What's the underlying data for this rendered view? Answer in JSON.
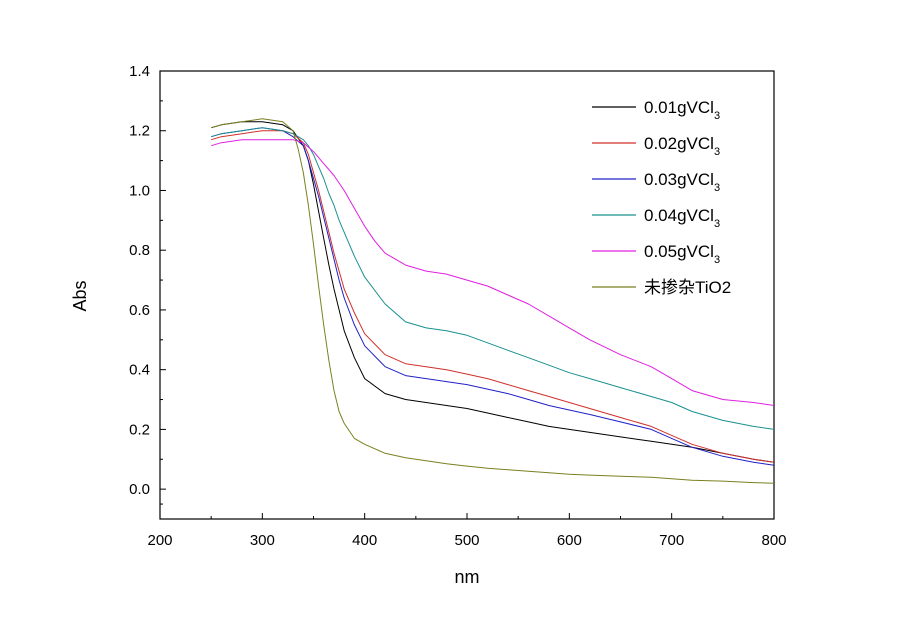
{
  "chart_data": {
    "type": "line",
    "xlabel": "nm",
    "ylabel": "Abs",
    "xlim": [
      200,
      800
    ],
    "ylim": [
      -0.1,
      1.4
    ],
    "xticks": [
      200,
      300,
      400,
      500,
      600,
      700,
      800
    ],
    "xtick_labels": [
      "200",
      "300",
      "400",
      "500",
      "600",
      "700",
      "800"
    ],
    "yticks": [
      0.0,
      0.2,
      0.4,
      0.6,
      0.8,
      1.0,
      1.2,
      1.4
    ],
    "ytick_labels": [
      "0.0",
      "0.2",
      "0.4",
      "0.6",
      "0.8",
      "1.0",
      "1.2",
      "1.4"
    ],
    "grid": false,
    "legend_position": "top-right",
    "series": [
      {
        "name": "0.01gVCl",
        "name_sub": "3",
        "color": "#000000",
        "x": [
          250,
          260,
          280,
          300,
          320,
          330,
          340,
          345,
          350,
          355,
          360,
          365,
          370,
          375,
          380,
          390,
          400,
          420,
          440,
          460,
          480,
          500,
          520,
          540,
          560,
          580,
          600,
          620,
          650,
          680,
          700,
          720,
          750,
          780,
          800
        ],
        "y": [
          1.21,
          1.22,
          1.23,
          1.23,
          1.22,
          1.2,
          1.15,
          1.1,
          1.02,
          0.93,
          0.84,
          0.75,
          0.67,
          0.6,
          0.53,
          0.44,
          0.37,
          0.32,
          0.3,
          0.29,
          0.28,
          0.27,
          0.255,
          0.24,
          0.225,
          0.21,
          0.2,
          0.19,
          0.175,
          0.16,
          0.15,
          0.14,
          0.12,
          0.1,
          0.09
        ]
      },
      {
        "name": "0.02gVCl",
        "name_sub": "3",
        "color": "#d0302a",
        "x": [
          250,
          260,
          280,
          300,
          320,
          330,
          340,
          345,
          350,
          355,
          360,
          365,
          370,
          375,
          380,
          390,
          400,
          420,
          440,
          460,
          480,
          500,
          520,
          540,
          560,
          580,
          600,
          620,
          650,
          680,
          700,
          720,
          750,
          780,
          800
        ],
        "y": [
          1.17,
          1.18,
          1.19,
          1.2,
          1.2,
          1.19,
          1.16,
          1.12,
          1.06,
          1.0,
          0.93,
          0.86,
          0.79,
          0.73,
          0.67,
          0.59,
          0.52,
          0.45,
          0.42,
          0.41,
          0.4,
          0.385,
          0.37,
          0.35,
          0.33,
          0.31,
          0.29,
          0.27,
          0.24,
          0.21,
          0.18,
          0.15,
          0.12,
          0.1,
          0.09
        ]
      },
      {
        "name": "0.03gVCl",
        "name_sub": "3",
        "color": "#2020c8",
        "x": [
          250,
          260,
          280,
          300,
          320,
          330,
          340,
          345,
          350,
          355,
          360,
          365,
          370,
          375,
          380,
          390,
          400,
          420,
          440,
          460,
          480,
          500,
          520,
          540,
          560,
          580,
          600,
          620,
          650,
          680,
          700,
          720,
          750,
          780,
          800
        ],
        "y": [
          1.18,
          1.19,
          1.2,
          1.21,
          1.2,
          1.18,
          1.15,
          1.1,
          1.04,
          0.98,
          0.91,
          0.84,
          0.77,
          0.7,
          0.64,
          0.55,
          0.48,
          0.41,
          0.38,
          0.37,
          0.36,
          0.35,
          0.335,
          0.32,
          0.3,
          0.28,
          0.265,
          0.25,
          0.225,
          0.2,
          0.17,
          0.14,
          0.11,
          0.09,
          0.08
        ]
      },
      {
        "name": "0.04gVCl",
        "name_sub": "3",
        "color": "#1a9090",
        "x": [
          250,
          260,
          280,
          300,
          320,
          330,
          340,
          345,
          350,
          355,
          360,
          365,
          370,
          375,
          380,
          390,
          400,
          420,
          440,
          460,
          480,
          500,
          520,
          540,
          560,
          580,
          600,
          620,
          650,
          680,
          700,
          720,
          750,
          780,
          800
        ],
        "y": [
          1.18,
          1.19,
          1.2,
          1.21,
          1.2,
          1.19,
          1.17,
          1.15,
          1.12,
          1.08,
          1.04,
          0.99,
          0.95,
          0.9,
          0.86,
          0.78,
          0.71,
          0.62,
          0.56,
          0.54,
          0.53,
          0.515,
          0.49,
          0.465,
          0.44,
          0.415,
          0.39,
          0.37,
          0.34,
          0.31,
          0.29,
          0.26,
          0.23,
          0.21,
          0.2
        ]
      },
      {
        "name": "0.05gVCl",
        "name_sub": "3",
        "color": "#e020e0",
        "x": [
          250,
          260,
          280,
          300,
          320,
          330,
          340,
          350,
          360,
          370,
          380,
          390,
          400,
          410,
          420,
          440,
          460,
          480,
          500,
          520,
          540,
          560,
          580,
          600,
          620,
          650,
          680,
          700,
          720,
          750,
          780,
          800
        ],
        "y": [
          1.15,
          1.16,
          1.17,
          1.17,
          1.17,
          1.17,
          1.16,
          1.13,
          1.09,
          1.05,
          1.0,
          0.94,
          0.88,
          0.83,
          0.79,
          0.75,
          0.73,
          0.72,
          0.7,
          0.68,
          0.65,
          0.62,
          0.58,
          0.54,
          0.5,
          0.45,
          0.41,
          0.37,
          0.33,
          0.3,
          0.29,
          0.28
        ]
      },
      {
        "name": "未掺杂TiO2",
        "color": "#7a8020",
        "x": [
          250,
          260,
          280,
          300,
          320,
          330,
          335,
          340,
          345,
          350,
          355,
          360,
          365,
          370,
          375,
          380,
          390,
          400,
          420,
          440,
          460,
          480,
          500,
          520,
          540,
          560,
          580,
          600,
          620,
          650,
          680,
          700,
          720,
          750,
          780,
          800
        ],
        "y": [
          1.21,
          1.22,
          1.23,
          1.24,
          1.23,
          1.2,
          1.14,
          1.06,
          0.95,
          0.82,
          0.68,
          0.55,
          0.43,
          0.33,
          0.26,
          0.22,
          0.17,
          0.15,
          0.12,
          0.105,
          0.095,
          0.085,
          0.077,
          0.07,
          0.065,
          0.06,
          0.055,
          0.05,
          0.047,
          0.043,
          0.04,
          0.035,
          0.03,
          0.027,
          0.022,
          0.02
        ]
      }
    ]
  }
}
